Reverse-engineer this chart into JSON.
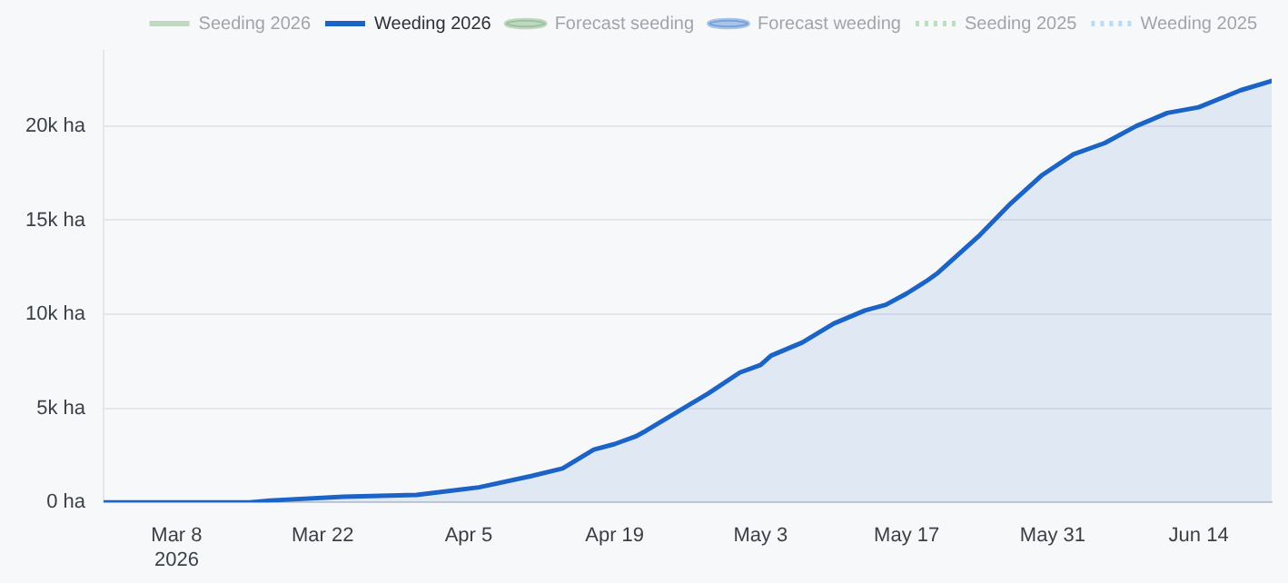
{
  "chart_data": {
    "type": "area",
    "x": [
      "2026-03-01",
      "2026-03-15",
      "2026-03-17",
      "2026-03-24",
      "2026-03-31",
      "2026-04-06",
      "2026-04-11",
      "2026-04-14",
      "2026-04-17",
      "2026-04-19",
      "2026-04-21",
      "2026-04-22",
      "2026-04-28",
      "2026-05-01",
      "2026-05-03",
      "2026-05-04",
      "2026-05-07",
      "2026-05-10",
      "2026-05-13",
      "2026-05-15",
      "2026-05-17",
      "2026-05-19",
      "2026-05-20",
      "2026-05-24",
      "2026-05-27",
      "2026-05-30",
      "2026-06-02",
      "2026-06-05",
      "2026-06-08",
      "2026-06-11",
      "2026-06-14",
      "2026-06-18",
      "2026-06-21"
    ],
    "series": [
      {
        "name": "Seeding 2026",
        "type": "line",
        "color": "#5a9e5a",
        "line_style": "solid",
        "marker": "none",
        "values": [
          null,
          null,
          null,
          null,
          null,
          null,
          null,
          null,
          null,
          null,
          null,
          null,
          null,
          null,
          null,
          null,
          null,
          null,
          null,
          null,
          null,
          null,
          null,
          null,
          null,
          null,
          null,
          null,
          null,
          null,
          null,
          null,
          null
        ]
      },
      {
        "name": "Weeding 2026",
        "type": "area",
        "color": "#1b63c6",
        "line_style": "solid",
        "marker": "none",
        "values": [
          0,
          0,
          100,
          300,
          400,
          800,
          1400,
          1800,
          2800,
          3100,
          3500,
          3800,
          5800,
          6900,
          7300,
          7800,
          8500,
          9500,
          10200,
          10500,
          11100,
          11800,
          12200,
          14200,
          15900,
          17400,
          18500,
          19100,
          20000,
          20700,
          21000,
          21900,
          22400
        ]
      },
      {
        "name": "Forecast seeding",
        "type": "line",
        "color": "#5a9e5a",
        "line_style": "solid",
        "marker": "circle",
        "values": [
          null,
          null,
          null,
          null,
          null,
          null,
          null,
          null,
          null,
          null,
          null,
          null,
          null,
          null,
          null,
          null,
          null,
          null,
          null,
          null,
          null,
          null,
          null,
          null,
          null,
          null,
          null,
          null,
          null,
          null,
          null,
          null,
          null
        ]
      },
      {
        "name": "Forecast weeding",
        "type": "line",
        "color": "#1b63c6",
        "line_style": "solid",
        "marker": "circle",
        "values": [
          null,
          null,
          null,
          null,
          null,
          null,
          null,
          null,
          null,
          null,
          null,
          null,
          null,
          null,
          null,
          null,
          null,
          null,
          null,
          null,
          null,
          null,
          null,
          null,
          null,
          null,
          null,
          null,
          null,
          null,
          null,
          null,
          null
        ]
      },
      {
        "name": "Seeding 2025",
        "type": "line",
        "color": "#4caf50",
        "line_style": "dotted",
        "marker": "none",
        "values": [
          null,
          null,
          null,
          null,
          null,
          null,
          null,
          null,
          null,
          null,
          null,
          null,
          null,
          null,
          null,
          null,
          null,
          null,
          null,
          null,
          null,
          null,
          null,
          null,
          null,
          null,
          null,
          null,
          null,
          null,
          null,
          null,
          null
        ]
      },
      {
        "name": "Weeding 2025",
        "type": "line",
        "color": "#42a5f5",
        "line_style": "dotted",
        "marker": "none",
        "values": [
          null,
          null,
          null,
          null,
          null,
          null,
          null,
          null,
          null,
          null,
          null,
          null,
          null,
          null,
          null,
          null,
          null,
          null,
          null,
          null,
          null,
          null,
          null,
          null,
          null,
          null,
          null,
          null,
          null,
          null,
          null,
          null,
          null
        ]
      }
    ],
    "xlim": [
      "2026-03-01",
      "2026-06-21"
    ],
    "xticks": [
      {
        "value": "2026-03-08",
        "label": "Mar 8\n2026"
      },
      {
        "value": "2026-03-22",
        "label": "Mar 22"
      },
      {
        "value": "2026-04-05",
        "label": "Apr 5"
      },
      {
        "value": "2026-04-19",
        "label": "Apr 19"
      },
      {
        "value": "2026-05-03",
        "label": "May 3"
      },
      {
        "value": "2026-05-17",
        "label": "May 17"
      },
      {
        "value": "2026-05-31",
        "label": "May 31"
      },
      {
        "value": "2026-06-14",
        "label": "Jun 14"
      }
    ],
    "yticks": [
      {
        "value": 0,
        "label": "0 ha"
      },
      {
        "value": 5000,
        "label": "5k ha"
      },
      {
        "value": 10000,
        "label": "10k ha"
      },
      {
        "value": 15000,
        "label": "15k ha"
      },
      {
        "value": 20000,
        "label": "20k ha"
      }
    ],
    "ylim": [
      0,
      24000
    ],
    "grid": "y",
    "legend": "top"
  }
}
